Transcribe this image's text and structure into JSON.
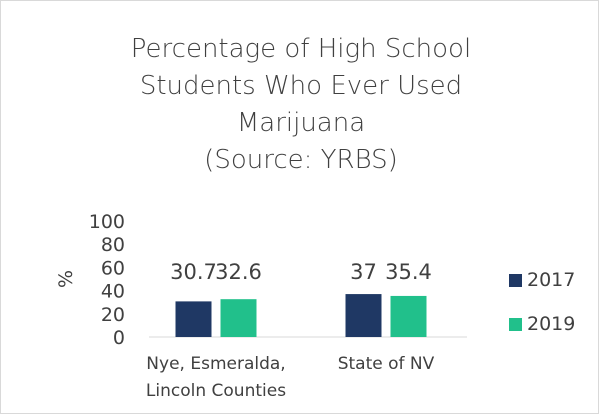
{
  "chart_data": {
    "type": "bar",
    "title_lines": [
      "Percentage of High School",
      "Students Who Ever Used",
      "Marijuana",
      "(Source: YRBS)"
    ],
    "ylabel": "%",
    "ylim": [
      0,
      100
    ],
    "yticks": [
      "100",
      "80",
      "60",
      "40",
      "20",
      "0"
    ],
    "grid": false,
    "legend_position": "right",
    "categories": [
      {
        "lines": [
          "Nye, Esmeralda,",
          "Lincoln Counties"
        ]
      },
      {
        "lines": [
          "State of NV"
        ]
      }
    ],
    "series": [
      {
        "name": "2017",
        "color": "#1f3864",
        "values": [
          30.7,
          37
        ],
        "labels": [
          "30.7",
          "37"
        ]
      },
      {
        "name": "2019",
        "color": "#21c08b",
        "values": [
          32.6,
          35.4
        ],
        "labels": [
          "32.6",
          "35.4"
        ]
      }
    ]
  }
}
